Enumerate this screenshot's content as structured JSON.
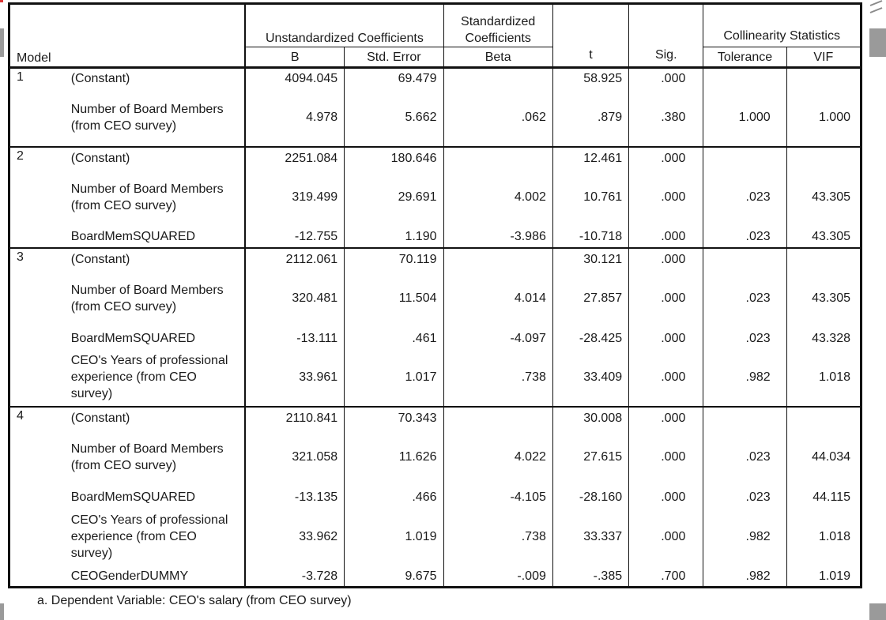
{
  "headers": {
    "model": "Model",
    "unstandardized": "Unstandardized Coefficients",
    "standardized": "Standardized Coefficients",
    "t": "t",
    "sig": "Sig.",
    "collinearity": "Collinearity Statistics",
    "b": "B",
    "std_error": "Std. Error",
    "beta": "Beta",
    "tolerance": "Tolerance",
    "vif": "VIF"
  },
  "groups": [
    {
      "model": "1",
      "rows": [
        {
          "label": "(Constant)",
          "b": "4094.045",
          "se": "69.479",
          "beta": "",
          "t": "58.925",
          "sig": ".000",
          "tol": "",
          "vif": ""
        },
        {
          "label": "Number of Board Members (from CEO survey)",
          "b": "4.978",
          "se": "5.662",
          "beta": ".062",
          "t": ".879",
          "sig": ".380",
          "tol": "1.000",
          "vif": "1.000"
        }
      ]
    },
    {
      "model": "2",
      "rows": [
        {
          "label": "(Constant)",
          "b": "2251.084",
          "se": "180.646",
          "beta": "",
          "t": "12.461",
          "sig": ".000",
          "tol": "",
          "vif": ""
        },
        {
          "label": "Number of Board Members (from CEO survey)",
          "b": "319.499",
          "se": "29.691",
          "beta": "4.002",
          "t": "10.761",
          "sig": ".000",
          "tol": ".023",
          "vif": "43.305"
        },
        {
          "label": "BoardMemSQUARED",
          "b": "-12.755",
          "se": "1.190",
          "beta": "-3.986",
          "t": "-10.718",
          "sig": ".000",
          "tol": ".023",
          "vif": "43.305"
        }
      ]
    },
    {
      "model": "3",
      "rows": [
        {
          "label": "(Constant)",
          "b": "2112.061",
          "se": "70.119",
          "beta": "",
          "t": "30.121",
          "sig": ".000",
          "tol": "",
          "vif": ""
        },
        {
          "label": "Number of Board Members (from CEO survey)",
          "b": "320.481",
          "se": "11.504",
          "beta": "4.014",
          "t": "27.857",
          "sig": ".000",
          "tol": ".023",
          "vif": "43.305"
        },
        {
          "label": "BoardMemSQUARED",
          "b": "-13.111",
          "se": ".461",
          "beta": "-4.097",
          "t": "-28.425",
          "sig": ".000",
          "tol": ".023",
          "vif": "43.328"
        },
        {
          "label": "CEO's Years of professional experience (from CEO survey)",
          "b": "33.961",
          "se": "1.017",
          "beta": ".738",
          "t": "33.409",
          "sig": ".000",
          "tol": ".982",
          "vif": "1.018"
        }
      ]
    },
    {
      "model": "4",
      "rows": [
        {
          "label": "(Constant)",
          "b": "2110.841",
          "se": "70.343",
          "beta": "",
          "t": "30.008",
          "sig": ".000",
          "tol": "",
          "vif": ""
        },
        {
          "label": "Number of Board Members (from CEO survey)",
          "b": "321.058",
          "se": "11.626",
          "beta": "4.022",
          "t": "27.615",
          "sig": ".000",
          "tol": ".023",
          "vif": "44.034"
        },
        {
          "label": "BoardMemSQUARED",
          "b": "-13.135",
          "se": ".466",
          "beta": "-4.105",
          "t": "-28.160",
          "sig": ".000",
          "tol": ".023",
          "vif": "44.115"
        },
        {
          "label": "CEO's Years of professional experience (from CEO survey)",
          "b": "33.962",
          "se": "1.019",
          "beta": ".738",
          "t": "33.337",
          "sig": ".000",
          "tol": ".982",
          "vif": "1.018"
        },
        {
          "label": "CEOGenderDUMMY",
          "b": "-3.728",
          "se": "9.675",
          "beta": "-.009",
          "t": "-.385",
          "sig": ".700",
          "tol": ".982",
          "vif": "1.019"
        }
      ]
    }
  ],
  "footnote": "a. Dependent Variable: CEO's salary (from CEO survey)"
}
